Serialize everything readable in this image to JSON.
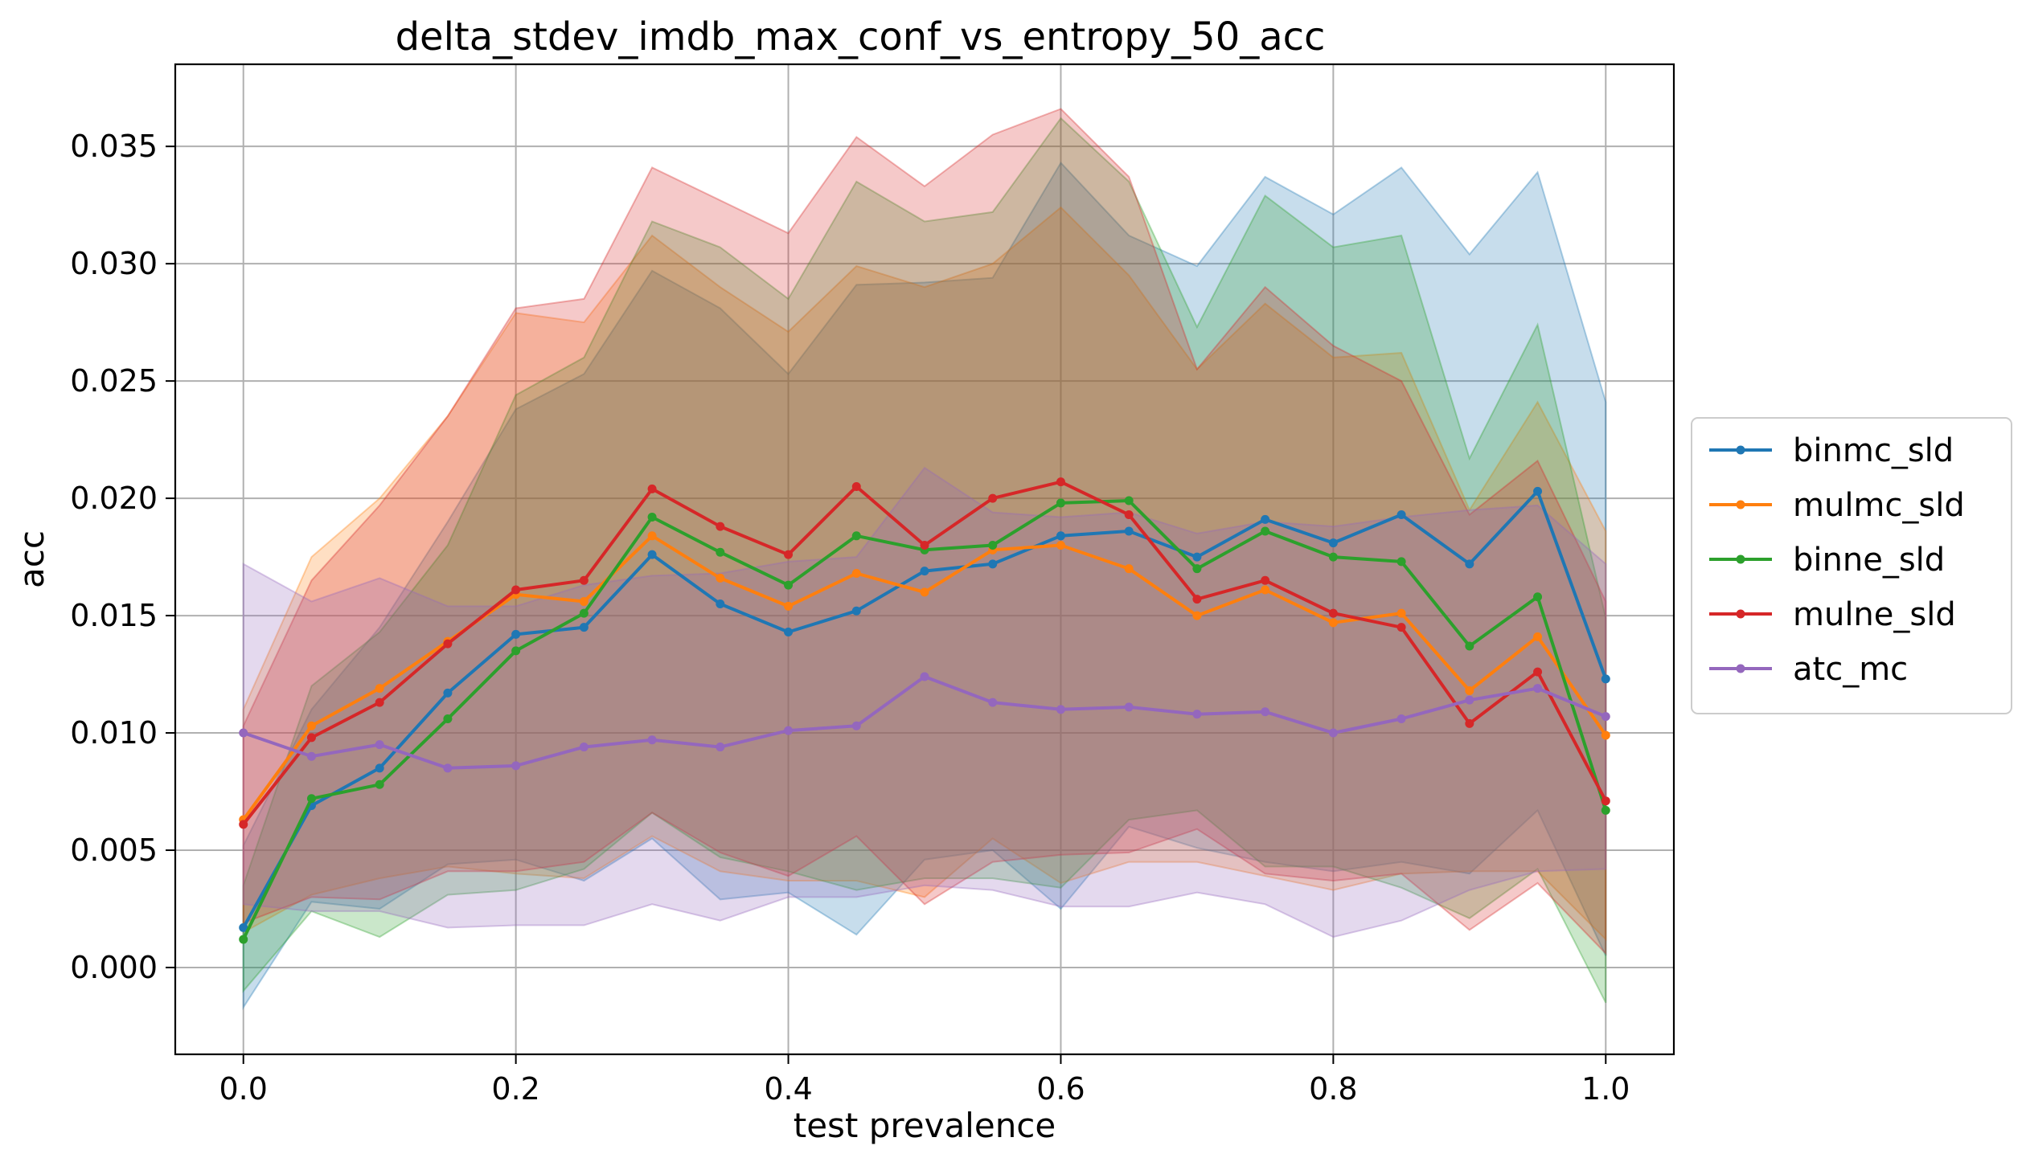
{
  "chart_data": {
    "type": "line",
    "title": "delta_stdev_imdb_max_conf_vs_entropy_50_acc",
    "xlabel": "test prevalence",
    "ylabel": "acc",
    "xlim": [
      -0.05,
      1.05
    ],
    "ylim": [
      -0.0037,
      0.0385
    ],
    "xticks": [
      0.0,
      0.2,
      0.4,
      0.6,
      0.8,
      1.0
    ],
    "xtick_labels": [
      "0.0",
      "0.2",
      "0.4",
      "0.6",
      "0.8",
      "1.0"
    ],
    "yticks": [
      0.0,
      0.005,
      0.01,
      0.015,
      0.02,
      0.025,
      0.03,
      0.035
    ],
    "ytick_labels": [
      "0.000",
      "0.005",
      "0.010",
      "0.015",
      "0.020",
      "0.025",
      "0.030",
      "0.035"
    ],
    "grid": true,
    "legend_position": "center-right-outside",
    "x": [
      0.0,
      0.05,
      0.1,
      0.15,
      0.2,
      0.25,
      0.3,
      0.35,
      0.4,
      0.45,
      0.5,
      0.55,
      0.6,
      0.65,
      0.7,
      0.75,
      0.8,
      0.85,
      0.9,
      0.95,
      1.0
    ],
    "series": [
      {
        "name": "binmc_sld",
        "color": "#1f77b4",
        "values": [
          0.0017,
          0.0069,
          0.0085,
          0.0117,
          0.0142,
          0.0145,
          0.0176,
          0.0155,
          0.0143,
          0.0152,
          0.0169,
          0.0172,
          0.0184,
          0.0186,
          0.0175,
          0.0191,
          0.0181,
          0.0193,
          0.0172,
          0.0203,
          0.0123
        ],
        "upper": [
          0.0052,
          0.011,
          0.0145,
          0.019,
          0.0238,
          0.0253,
          0.0297,
          0.0281,
          0.0253,
          0.0291,
          0.0292,
          0.0294,
          0.0343,
          0.0312,
          0.0299,
          0.0337,
          0.0321,
          0.0341,
          0.0304,
          0.0339,
          0.0241
        ],
        "lower": [
          -0.0017,
          0.0028,
          0.0025,
          0.0044,
          0.0046,
          0.0037,
          0.0055,
          0.0029,
          0.0032,
          0.0014,
          0.0046,
          0.005,
          0.0025,
          0.006,
          0.0051,
          0.0045,
          0.0041,
          0.0045,
          0.004,
          0.0067,
          0.0005
        ]
      },
      {
        "name": "mulmc_sld",
        "color": "#ff7f0e",
        "values": [
          0.0063,
          0.0103,
          0.0119,
          0.0139,
          0.0159,
          0.0156,
          0.0184,
          0.0166,
          0.0154,
          0.0168,
          0.016,
          0.0178,
          0.018,
          0.017,
          0.015,
          0.0161,
          0.0147,
          0.0151,
          0.0118,
          0.0141,
          0.0099
        ],
        "upper": [
          0.011,
          0.0175,
          0.02,
          0.0235,
          0.0279,
          0.0275,
          0.0312,
          0.029,
          0.0271,
          0.0299,
          0.029,
          0.03,
          0.0324,
          0.0295,
          0.0255,
          0.0283,
          0.026,
          0.0262,
          0.0195,
          0.0241,
          0.0186
        ],
        "lower": [
          0.0015,
          0.0031,
          0.0038,
          0.0043,
          0.004,
          0.0038,
          0.0056,
          0.0041,
          0.0037,
          0.0037,
          0.003,
          0.0055,
          0.0036,
          0.0045,
          0.0045,
          0.0039,
          0.0033,
          0.004,
          0.0041,
          0.0041,
          0.0012
        ]
      },
      {
        "name": "binne_sld",
        "color": "#2ca02c",
        "values": [
          0.0012,
          0.0072,
          0.0078,
          0.0106,
          0.0135,
          0.0151,
          0.0192,
          0.0177,
          0.0163,
          0.0184,
          0.0178,
          0.018,
          0.0198,
          0.0199,
          0.017,
          0.0186,
          0.0175,
          0.0173,
          0.0137,
          0.0158,
          0.0067
        ],
        "upper": [
          0.0035,
          0.012,
          0.0143,
          0.018,
          0.0244,
          0.026,
          0.0318,
          0.0307,
          0.0285,
          0.0335,
          0.0318,
          0.0322,
          0.0362,
          0.0335,
          0.0273,
          0.0329,
          0.0307,
          0.0312,
          0.0217,
          0.0274,
          0.0149
        ],
        "lower": [
          -0.001,
          0.0024,
          0.0013,
          0.0031,
          0.0033,
          0.0042,
          0.0066,
          0.0047,
          0.0041,
          0.0033,
          0.0038,
          0.0038,
          0.0034,
          0.0063,
          0.0067,
          0.0043,
          0.0043,
          0.0034,
          0.0021,
          0.0042,
          -0.0015
        ]
      },
      {
        "name": "mulne_sld",
        "color": "#d62728",
        "values": [
          0.0061,
          0.0098,
          0.0113,
          0.0138,
          0.0161,
          0.0165,
          0.0204,
          0.0188,
          0.0176,
          0.0205,
          0.018,
          0.02,
          0.0207,
          0.0193,
          0.0157,
          0.0165,
          0.0151,
          0.0145,
          0.0104,
          0.0126,
          0.0071
        ],
        "upper": [
          0.0103,
          0.0165,
          0.0197,
          0.0235,
          0.0281,
          0.0285,
          0.0341,
          0.0327,
          0.0313,
          0.0354,
          0.0333,
          0.0355,
          0.0366,
          0.0337,
          0.0255,
          0.029,
          0.0265,
          0.025,
          0.0193,
          0.0216,
          0.0156
        ],
        "lower": [
          0.0019,
          0.003,
          0.0029,
          0.0041,
          0.0041,
          0.0045,
          0.0066,
          0.0049,
          0.0039,
          0.0056,
          0.0027,
          0.0045,
          0.0048,
          0.0049,
          0.0059,
          0.004,
          0.0037,
          0.004,
          0.0016,
          0.0036,
          0.0006
        ]
      },
      {
        "name": "atc_mc",
        "color": "#9467bd",
        "values": [
          0.01,
          0.009,
          0.0095,
          0.0085,
          0.0086,
          0.0094,
          0.0097,
          0.0094,
          0.0101,
          0.0103,
          0.0124,
          0.0113,
          0.011,
          0.0111,
          0.0108,
          0.0109,
          0.01,
          0.0106,
          0.0114,
          0.0119,
          0.0107
        ],
        "upper": [
          0.0172,
          0.0156,
          0.0166,
          0.0154,
          0.0154,
          0.0163,
          0.0167,
          0.0168,
          0.0173,
          0.0175,
          0.0213,
          0.0194,
          0.0192,
          0.0194,
          0.0185,
          0.019,
          0.0188,
          0.0192,
          0.0195,
          0.0197,
          0.0172
        ],
        "lower": [
          0.0027,
          0.0024,
          0.0024,
          0.0017,
          0.0018,
          0.0018,
          0.0027,
          0.002,
          0.003,
          0.003,
          0.0035,
          0.0033,
          0.0026,
          0.0026,
          0.0032,
          0.0027,
          0.0013,
          0.002,
          0.0033,
          0.0041,
          0.0042
        ]
      }
    ]
  }
}
